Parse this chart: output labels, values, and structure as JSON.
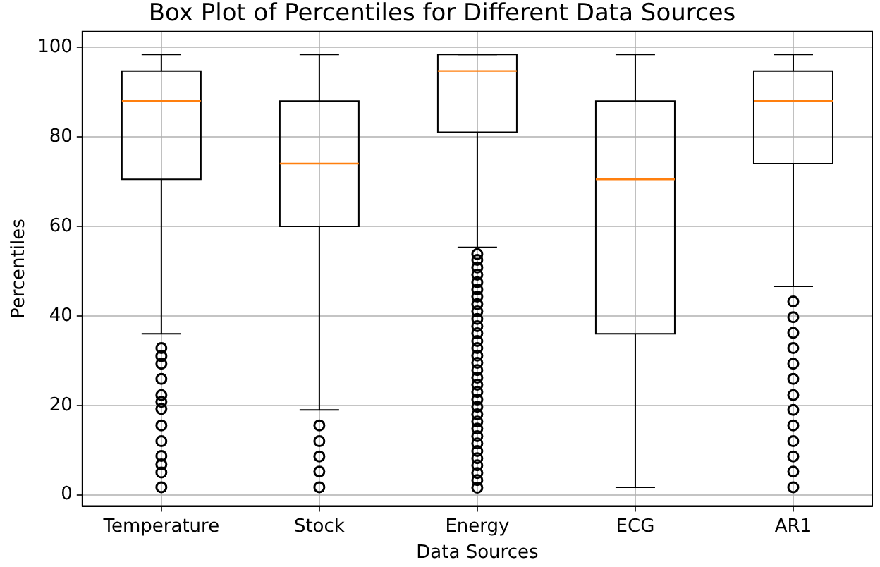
{
  "chart_data": {
    "type": "box",
    "title": "Box Plot of Percentiles for Different Data Sources",
    "xlabel": "Data Sources",
    "ylabel": "Percentiles",
    "categories": [
      "Temperature",
      "Stock",
      "Energy",
      "ECG",
      "AR1"
    ],
    "boxes": [
      {
        "low": 36,
        "q1": 70.5,
        "median": 88,
        "q3": 94.7,
        "high": 98.4,
        "outliers": [
          32.8,
          31,
          29.3,
          25.9,
          22.3,
          20.8,
          19.2,
          15.5,
          12,
          8.7,
          6.8,
          5,
          1.7
        ]
      },
      {
        "low": 19,
        "q1": 60,
        "median": 74,
        "q3": 88,
        "high": 98.4,
        "outliers": [
          15.5,
          12,
          8.6,
          5.2,
          1.7
        ]
      },
      {
        "low": 55.3,
        "q1": 81,
        "median": 94.7,
        "q3": 98.4,
        "high": 98.4,
        "outliers": [
          1.6,
          3.3,
          4.9,
          6.6,
          8.2,
          9.8,
          11.5,
          13.1,
          14.8,
          16.4,
          18,
          19.7,
          21.3,
          23,
          24.6,
          26.2,
          27.9,
          29.5,
          31.1,
          32.8,
          34.4,
          36.1,
          37.7,
          39.3,
          41,
          42.6,
          44.3,
          45.9,
          47.5,
          49.2,
          50.8,
          52.5,
          53.8
        ]
      },
      {
        "low": 1.7,
        "q1": 36,
        "median": 70.5,
        "q3": 88,
        "high": 98.4
      },
      {
        "low": 46.6,
        "q1": 74,
        "median": 88,
        "q3": 94.7,
        "high": 98.4,
        "outliers": [
          43.2,
          39.7,
          36.2,
          32.8,
          29.3,
          25.9,
          22.3,
          19,
          15.5,
          12,
          8.6,
          5.2,
          1.7
        ]
      }
    ],
    "ylim": [
      -2.5,
      103.5
    ],
    "yticks": [
      0,
      20,
      40,
      60,
      80,
      100
    ],
    "grid": true,
    "marker": "circle",
    "legend": false
  }
}
